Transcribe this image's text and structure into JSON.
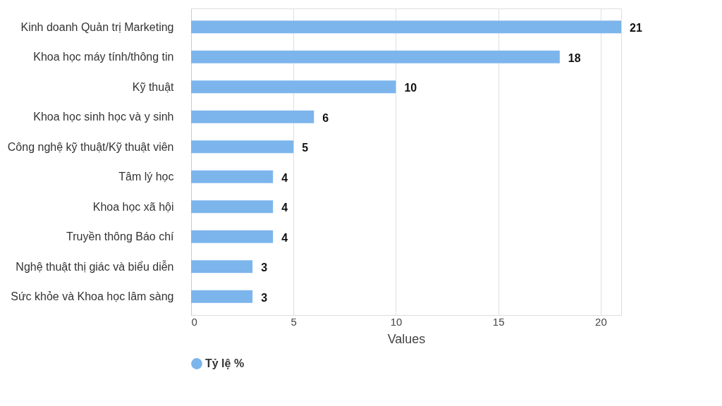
{
  "chart_data": {
    "type": "bar",
    "orientation": "horizontal",
    "xlabel": "Values",
    "categories": [
      "Kinh doanh Quản trị Marketing",
      "Khoa học máy tính/thông tin",
      "Kỹ thuật",
      "Khoa học sinh học và y sinh",
      "Công nghệ kỹ thuật/Kỹ thuật viên",
      "Tâm lý học",
      "Khoa học xã hội",
      "Truyền thông Báo chí",
      "Nghệ thuật thị giác và biểu diễn",
      "Sức khỏe và Khoa học lâm sàng"
    ],
    "series": [
      {
        "name": "Tỷ lệ %",
        "color": "#7cb5ec",
        "values": [
          21,
          18,
          10,
          6,
          5,
          4,
          4,
          4,
          3,
          3
        ]
      }
    ],
    "xlim": [
      0,
      21
    ],
    "xticks": [
      0,
      5,
      10,
      15,
      20
    ],
    "grid": "x",
    "legend": "bottom",
    "marker": "circle",
    "data_labels": true
  }
}
